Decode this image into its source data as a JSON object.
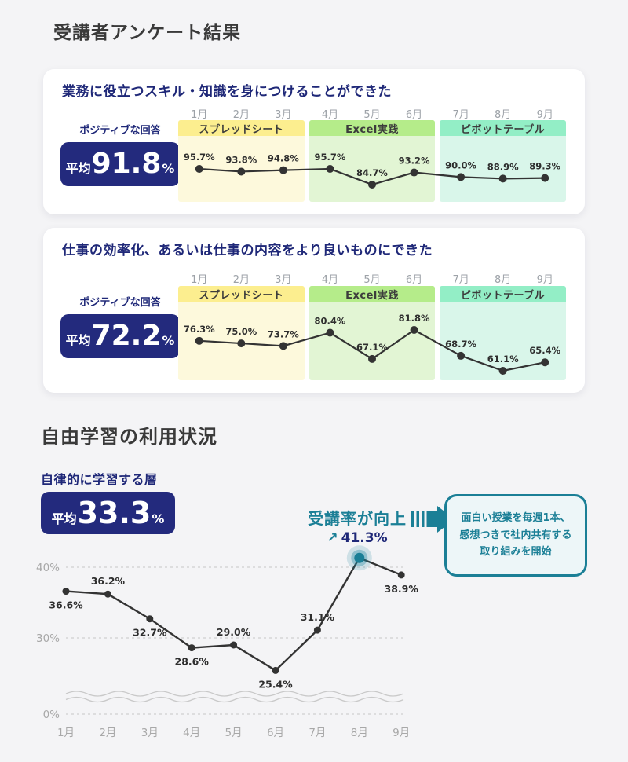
{
  "page": {
    "background": "#f4f4f6"
  },
  "colors": {
    "navy": "#232a7d",
    "navy_text": "#1f2878",
    "teal": "#1b7f96",
    "callout_bg": "#edf6f8",
    "line": "#333333",
    "axis_gray": "#a8a8a8",
    "grid_gray": "#cfcfcf",
    "heading_gray": "#3a3a3a"
  },
  "survey_section": {
    "heading": "受講者アンケート結果",
    "cards": [
      {
        "title": "業務に役立つスキル・知識を身につけることができた",
        "stat_label": "ポジティブな回答",
        "stat_prefix": "平均",
        "stat_value": "91.8",
        "stat_suffix": "%"
      },
      {
        "title": "仕事の効率化、あるいは仕事の内容をより良いものにできた",
        "stat_label": "ポジティブな回答",
        "stat_prefix": "平均",
        "stat_value": "72.2",
        "stat_suffix": "%"
      }
    ]
  },
  "free_learning": {
    "heading": "自由学習の利用状況",
    "stat_label": "自律的に学習する層",
    "stat_prefix": "平均",
    "stat_value": "33.3",
    "stat_suffix": "%",
    "annotation": {
      "title": "受講率が向上",
      "arrow_glyph": "↗",
      "value": "41.3%"
    },
    "callout_lines": [
      "面白い授業を毎週1本、",
      "感想つきで社内共有する",
      "取り組みを開始"
    ]
  },
  "chart_data": [
    {
      "type": "line",
      "title": "業務に役立つスキル・知識を身につけることができた",
      "categories": [
        "1月",
        "2月",
        "3月",
        "4月",
        "5月",
        "6月",
        "7月",
        "8月",
        "9月"
      ],
      "values": [
        95.7,
        93.8,
        94.8,
        95.7,
        84.7,
        93.2,
        90.0,
        88.9,
        89.3
      ],
      "unit": "%",
      "average": 91.8,
      "legend_position": "none",
      "phase_bands": [
        {
          "label": "スプレッドシート",
          "months": [
            "1月",
            "2月",
            "3月"
          ],
          "header_color": "#fcee8f",
          "body_color": "#fdf9dc"
        },
        {
          "label": "Excel実践",
          "months": [
            "4月",
            "5月",
            "6月"
          ],
          "header_color": "#b5ec8a",
          "body_color": "#e2f5d4"
        },
        {
          "label": "ピボットテーブル",
          "months": [
            "7月",
            "8月",
            "9月"
          ],
          "header_color": "#93eec6",
          "body_color": "#d9f6ea"
        }
      ]
    },
    {
      "type": "line",
      "title": "仕事の効率化、あるいは仕事の内容をより良いものにできた",
      "categories": [
        "1月",
        "2月",
        "3月",
        "4月",
        "5月",
        "6月",
        "7月",
        "8月",
        "9月"
      ],
      "values": [
        76.3,
        75.0,
        73.7,
        80.4,
        67.1,
        81.8,
        68.7,
        61.1,
        65.4
      ],
      "unit": "%",
      "average": 72.2,
      "legend_position": "none",
      "phase_bands": [
        {
          "label": "スプレッドシート",
          "months": [
            "1月",
            "2月",
            "3月"
          ],
          "header_color": "#fcee8f",
          "body_color": "#fdf9dc"
        },
        {
          "label": "Excel実践",
          "months": [
            "4月",
            "5月",
            "6月"
          ],
          "header_color": "#b5ec8a",
          "body_color": "#e2f5d4"
        },
        {
          "label": "ピボットテーブル",
          "months": [
            "7月",
            "8月",
            "9月"
          ],
          "header_color": "#93eec6",
          "body_color": "#d9f6ea"
        }
      ]
    },
    {
      "type": "line",
      "title": "自由学習の利用状況",
      "categories": [
        "1月",
        "2月",
        "3月",
        "4月",
        "5月",
        "6月",
        "7月",
        "8月",
        "9月"
      ],
      "values": [
        36.6,
        36.2,
        32.7,
        28.6,
        29.0,
        25.4,
        31.1,
        41.3,
        38.9
      ],
      "unit": "%",
      "average": 33.3,
      "ylim": [
        0,
        45
      ],
      "yticks": [
        "40%",
        "30%",
        "0%"
      ],
      "axis_break": true,
      "grid": "horizontal-dashed",
      "highlight_index": 7,
      "label_positions": [
        "below",
        "above",
        "below",
        "below",
        "above",
        "below",
        "above",
        "none",
        "below"
      ]
    }
  ]
}
